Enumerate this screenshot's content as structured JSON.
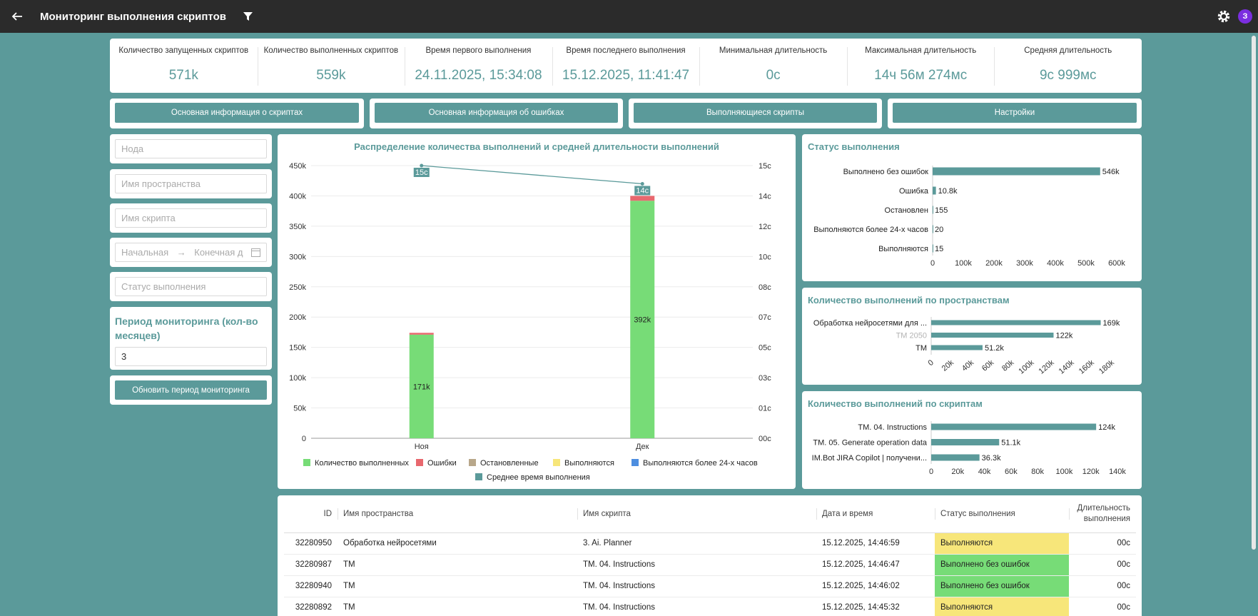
{
  "app": {
    "title": "Мониторинг выполнения скриптов",
    "avatar_letter": "З"
  },
  "stats": [
    {
      "label": "Количество запущенных скриптов",
      "value": "571k"
    },
    {
      "label": "Количество выполненных скриптов",
      "value": "559k"
    },
    {
      "label": "Время первого выполнения",
      "value": "24.11.2025, 15:34:08"
    },
    {
      "label": "Время последнего выполнения",
      "value": "15.12.2025, 11:41:47"
    },
    {
      "label": "Минимальная длительность",
      "value": "0с"
    },
    {
      "label": "Максимальная длительность",
      "value": "14ч 56м 274мс"
    },
    {
      "label": "Средняя длительность",
      "value": "9с 999мс"
    }
  ],
  "nav": [
    "Основная информация о скриптах",
    "Основная информация об ошибках",
    "Выполняющиеся скрипты",
    "Настройки"
  ],
  "filters": {
    "node_placeholder": "Нода",
    "space_placeholder": "Имя пространства",
    "script_placeholder": "Имя скрипта",
    "date_start_placeholder": "Начальная",
    "date_end_placeholder": "Конечная д",
    "status_placeholder": "Статус выполнения",
    "period_title": "Период мониторинга (кол-во месяцев)",
    "period_value": "3",
    "update_button": "Обновить период мониторинга"
  },
  "chart_data": [
    {
      "type": "bar",
      "title": "Распределение количества выполнений и средней длительности выполнений",
      "categories": [
        "Ноя",
        "Дек"
      ],
      "stacked": true,
      "y_left": {
        "ticks": [
          "0",
          "50k",
          "100k",
          "150k",
          "200k",
          "250k",
          "300k",
          "350k",
          "400k",
          "450k"
        ],
        "range": [
          0,
          450000
        ]
      },
      "y_right": {
        "ticks": [
          "00с",
          "01с",
          "03с",
          "05с",
          "07с",
          "08с",
          "10с",
          "12с",
          "14с",
          "15с"
        ],
        "range": [
          0,
          15
        ]
      },
      "series": [
        {
          "name": "Количество выполненных",
          "color": "#77dc77",
          "values": [
            171000,
            392000
          ],
          "labels": [
            "171k",
            "392k"
          ]
        },
        {
          "name": "Ошибки",
          "color": "#e8686e",
          "values": [
            3000,
            8000
          ]
        },
        {
          "name": "Остановленные",
          "color": "#b8a78a",
          "values": [
            0,
            0
          ]
        },
        {
          "name": "Выполняются",
          "color": "#f7e67a",
          "values": [
            0,
            0
          ]
        },
        {
          "name": "Выполняются более 24-х часов",
          "color": "#4d8ee0",
          "values": [
            0,
            0
          ]
        },
        {
          "name": "Среднее время выполнения",
          "color": "#5b9a9a",
          "type": "line",
          "axis": "right",
          "values": [
            15,
            14
          ],
          "labels": [
            "15с",
            "14с"
          ]
        }
      ],
      "grid": true,
      "legend": "bottom"
    },
    {
      "type": "bar",
      "orientation": "horizontal",
      "title": "Статус выполнения",
      "categories": [
        "Выполнено без ошибок",
        "Ошибка",
        "Остановлен",
        "Выполняются более 24-х часов",
        "Выполняются"
      ],
      "values": [
        546000,
        10800,
        155,
        20,
        15
      ],
      "labels": [
        "546k",
        "10.8k",
        "155",
        "20",
        "15"
      ],
      "x_ticks": [
        "0",
        "100k",
        "200k",
        "300k",
        "400k",
        "500k",
        "600k"
      ],
      "xlim": [
        0,
        600000
      ],
      "color": "#5b9a9a"
    },
    {
      "type": "bar",
      "orientation": "horizontal",
      "title": "Количество выполнений по пространствам",
      "categories": [
        "Обработка нейросетями для ...",
        "TM 2050",
        "TM"
      ],
      "values": [
        169000,
        122000,
        51200
      ],
      "labels": [
        "169k",
        "122k",
        "51.2k"
      ],
      "x_ticks": [
        "0",
        "20k",
        "40k",
        "60k",
        "80k",
        "100k",
        "120k",
        "140k",
        "160k",
        "180k"
      ],
      "xlim": [
        0,
        180000
      ],
      "color": "#5b9a9a"
    },
    {
      "type": "bar",
      "orientation": "horizontal",
      "title": "Количество выполнений по скриптам",
      "categories": [
        "TM. 04. Instructions",
        "TM. 05. Generate operation data",
        "IM.Bot JIRA Copilot | получени..."
      ],
      "values": [
        124000,
        51100,
        36300
      ],
      "labels": [
        "124k",
        "51.1k",
        "36.3k"
      ],
      "x_ticks": [
        "0",
        "20k",
        "40k",
        "60k",
        "80k",
        "100k",
        "120k",
        "140k"
      ],
      "xlim": [
        0,
        140000
      ],
      "color": "#5b9a9a"
    }
  ],
  "table": {
    "headers": [
      "ID",
      "Имя пространства",
      "Имя скрипта",
      "Дата и время",
      "Статус выполнения",
      "Длительность выполнения"
    ],
    "rows": [
      [
        "32280950",
        "Обработка нейросетями",
        "3. Ai. Planner",
        "15.12.2025, 14:46:59",
        "Выполняются",
        "00с"
      ],
      [
        "32280987",
        "TM",
        "TM. 04. Instructions",
        "15.12.2025, 14:46:47",
        "Выполнено без ошибок",
        "00с"
      ],
      [
        "32280940",
        "TM",
        "TM. 04. Instructions",
        "15.12.2025, 14:46:02",
        "Выполнено без ошибок",
        "00с"
      ],
      [
        "32280892",
        "TM",
        "TM. 04. Instructions",
        "15.12.2025, 14:45:32",
        "Выполняются",
        "00с"
      ]
    ],
    "status_colors": {
      "Выполняются": "#f7e67a",
      "Выполнено без ошибок": "#77dc77"
    }
  }
}
